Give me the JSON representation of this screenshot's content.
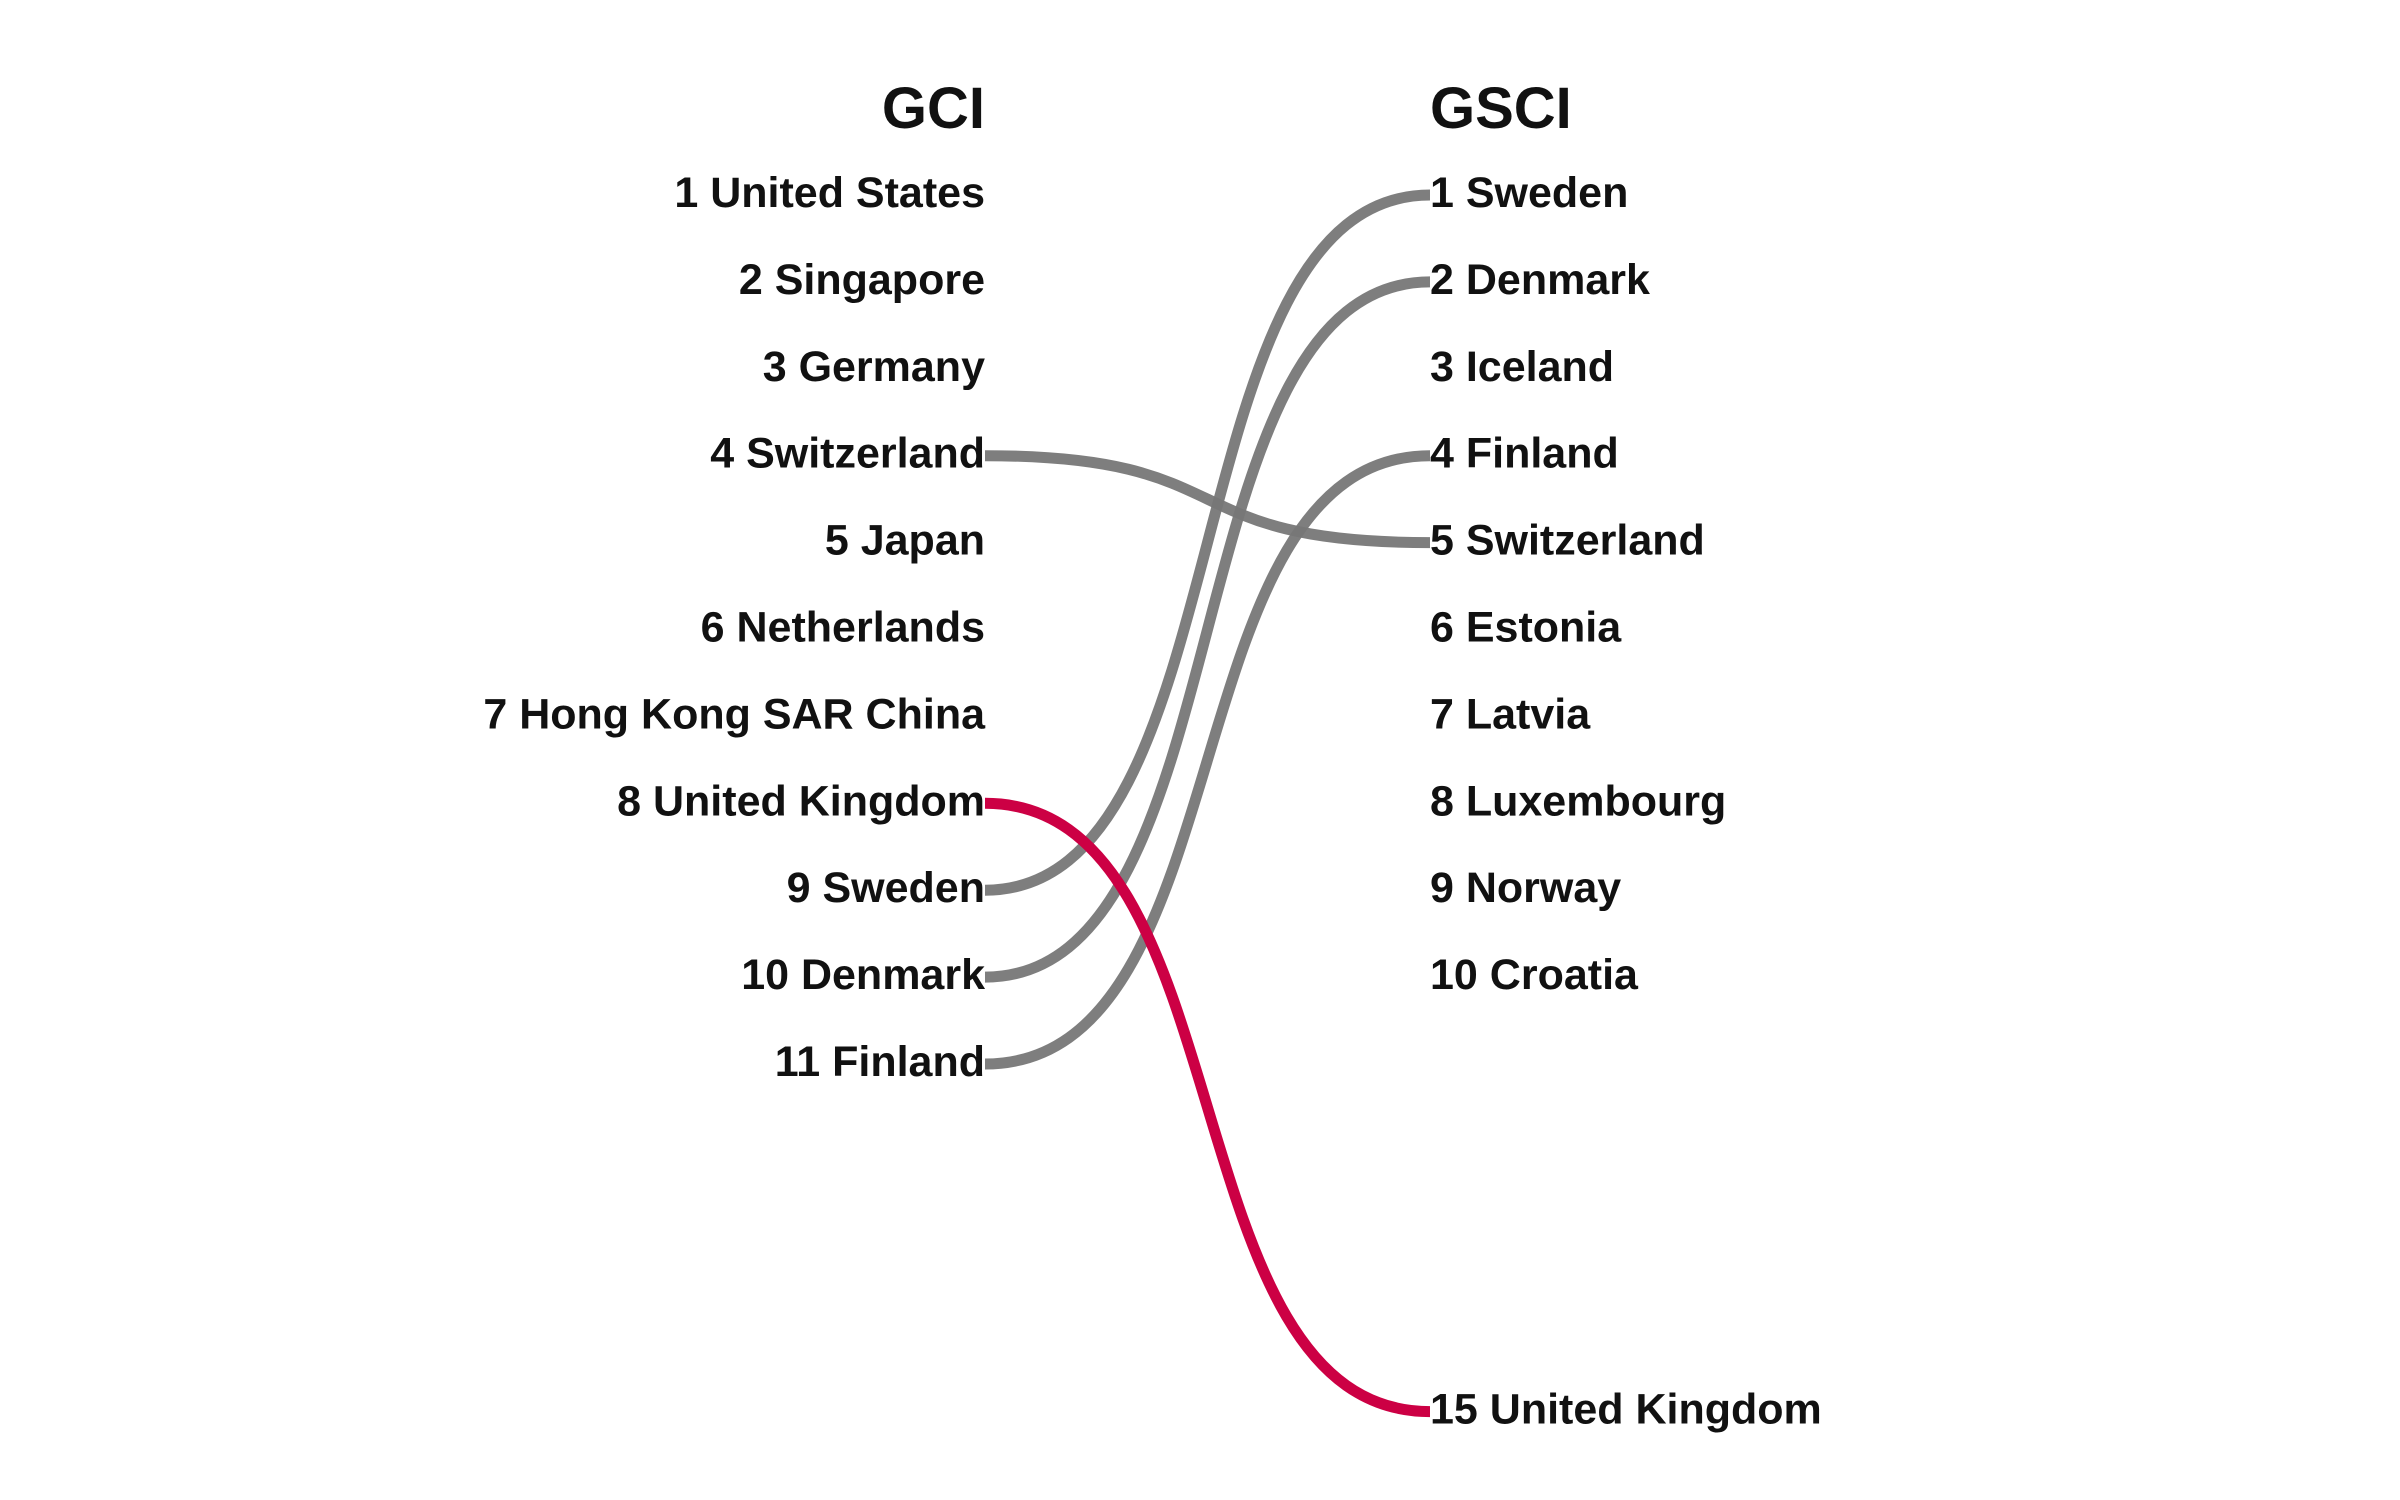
{
  "chart_data": {
    "type": "slopegraph",
    "left_title": "GCI",
    "right_title": "GSCI",
    "left": [
      {
        "rank": 1,
        "country": "United States"
      },
      {
        "rank": 2,
        "country": "Singapore"
      },
      {
        "rank": 3,
        "country": "Germany"
      },
      {
        "rank": 4,
        "country": "Switzerland"
      },
      {
        "rank": 5,
        "country": "Japan"
      },
      {
        "rank": 6,
        "country": "Netherlands"
      },
      {
        "rank": 7,
        "country": "Hong Kong SAR China"
      },
      {
        "rank": 8,
        "country": "United Kingdom"
      },
      {
        "rank": 9,
        "country": "Sweden"
      },
      {
        "rank": 10,
        "country": "Denmark"
      },
      {
        "rank": 11,
        "country": "Finland"
      }
    ],
    "right": [
      {
        "rank": 1,
        "country": "Sweden"
      },
      {
        "rank": 2,
        "country": "Denmark"
      },
      {
        "rank": 3,
        "country": "Iceland"
      },
      {
        "rank": 4,
        "country": "Finland"
      },
      {
        "rank": 5,
        "country": "Switzerland"
      },
      {
        "rank": 6,
        "country": "Estonia"
      },
      {
        "rank": 7,
        "country": "Latvia"
      },
      {
        "rank": 8,
        "country": "Luxembourg"
      },
      {
        "rank": 9,
        "country": "Norway"
      },
      {
        "rank": 10,
        "country": "Croatia"
      },
      {
        "rank": 15,
        "country": "United Kingdom"
      }
    ],
    "links": [
      {
        "from_rank": 4,
        "to_rank": 5,
        "country": "Switzerland",
        "highlight": false
      },
      {
        "from_rank": 9,
        "to_rank": 1,
        "country": "Sweden",
        "highlight": false
      },
      {
        "from_rank": 10,
        "to_rank": 2,
        "country": "Denmark",
        "highlight": false
      },
      {
        "from_rank": 11,
        "to_rank": 4,
        "country": "Finland",
        "highlight": false
      },
      {
        "from_rank": 8,
        "to_rank": 15,
        "country": "United Kingdom",
        "highlight": true
      }
    ],
    "colors": {
      "link": "#777777",
      "highlight": "#cc0044",
      "text": "#111111"
    }
  }
}
